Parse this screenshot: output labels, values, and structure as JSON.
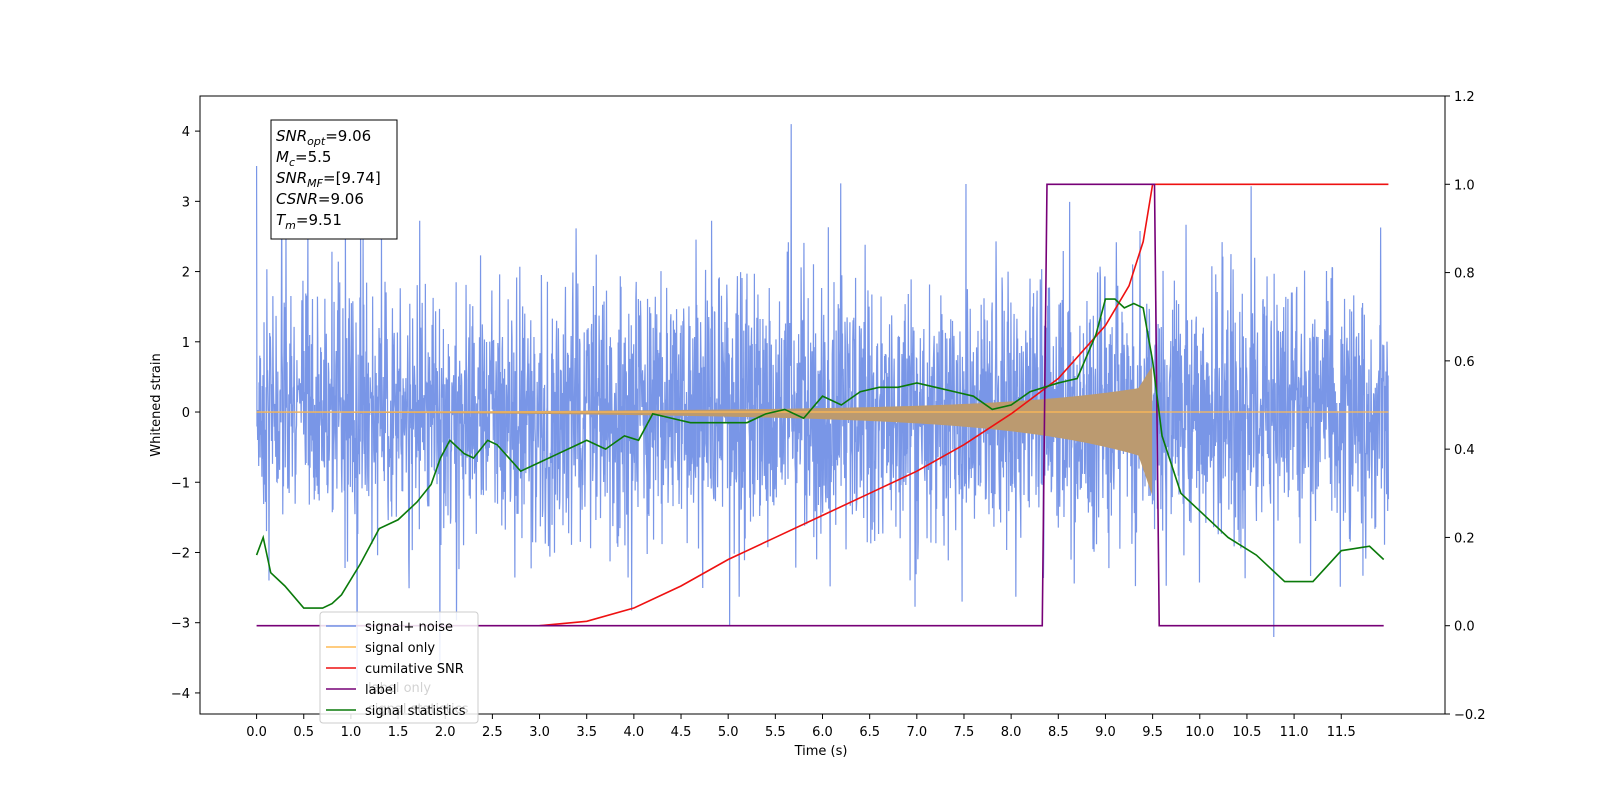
{
  "chart_data": {
    "type": "line",
    "xlabel": "Time (s)",
    "ylabel": "Whitened strain",
    "xlim": [
      -0.6,
      12.6
    ],
    "ylim": [
      -4.3,
      4.5
    ],
    "y2lim": [
      -0.2,
      1.2
    ],
    "x_ticks": [
      "0.0",
      "0.5",
      "1.0",
      "1.5",
      "2.0",
      "2.5",
      "3.0",
      "3.5",
      "4.0",
      "4.5",
      "5.0",
      "5.5",
      "6.0",
      "6.5",
      "7.0",
      "7.5",
      "8.0",
      "8.5",
      "9.0",
      "9.5",
      "10.0",
      "10.5",
      "11.0",
      "11.5"
    ],
    "y_ticks": [
      -4,
      -3,
      -2,
      -1,
      0,
      1,
      2,
      3,
      4
    ],
    "y2_ticks": [
      "−0.2",
      "0.0",
      "0.2",
      "0.4",
      "0.6",
      "0.8",
      "1.0",
      "1.2"
    ],
    "annotation": [
      {
        "base": "SNR",
        "sub": "opt",
        "value": "=9.06"
      },
      {
        "base": "M",
        "sub": "c",
        "value": "=5.5"
      },
      {
        "base": "SNR",
        "sub": "MF",
        "value": "=[9.74]"
      },
      {
        "base": "CSNR",
        "sub": "",
        "value": "=9.06"
      },
      {
        "base": "T",
        "sub": "m",
        "value": "=9.51"
      }
    ],
    "legend": {
      "placement": "lower-left",
      "entries": [
        "signal+ noise",
        "signal only",
        "cumilative SNR",
        "label",
        "signal statistics"
      ],
      "ghost_entries": [
        "label only",
        "signal statistics"
      ]
    },
    "series": [
      {
        "name": "signal+ noise",
        "axis": "left",
        "color": "#7290e6",
        "x_range": [
          0,
          12
        ],
        "amplitude_sd": 0.9
      },
      {
        "name": "signal only",
        "axis": "left",
        "color": "#ffbb55",
        "fill_color": "#bb9a70",
        "x_range": [
          0,
          9.5
        ],
        "peak_amplitude": 1.0
      },
      {
        "name": "cumilative SNR",
        "axis": "right",
        "color": "#ee1111",
        "x": [
          3.0,
          3.5,
          4.0,
          4.5,
          5.0,
          5.5,
          6.0,
          6.5,
          7.0,
          7.5,
          8.0,
          8.5,
          9.0,
          9.25,
          9.4,
          9.5,
          12.0
        ],
        "values": [
          0.0,
          0.01,
          0.04,
          0.09,
          0.15,
          0.2,
          0.25,
          0.3,
          0.35,
          0.41,
          0.48,
          0.56,
          0.68,
          0.77,
          0.87,
          1.0,
          1.0
        ]
      },
      {
        "name": "label",
        "axis": "right",
        "color": "#770077",
        "x": [
          0,
          8.33,
          8.38,
          9.52,
          9.57,
          11.95
        ],
        "values": [
          0,
          0,
          1,
          1,
          0,
          0
        ]
      },
      {
        "name": "signal statistics",
        "axis": "right",
        "color": "#0a7a0a",
        "x": [
          0.0,
          0.07,
          0.15,
          0.3,
          0.5,
          0.7,
          0.8,
          0.9,
          1.1,
          1.3,
          1.5,
          1.7,
          1.85,
          1.95,
          2.05,
          2.2,
          2.3,
          2.45,
          2.55,
          2.8,
          3.0,
          3.2,
          3.4,
          3.5,
          3.7,
          3.9,
          4.05,
          4.2,
          4.4,
          4.6,
          4.8,
          5.0,
          5.2,
          5.4,
          5.6,
          5.8,
          6.0,
          6.2,
          6.4,
          6.6,
          6.8,
          7.0,
          7.2,
          7.4,
          7.6,
          7.8,
          8.0,
          8.2,
          8.5,
          8.7,
          8.9,
          9.0,
          9.1,
          9.2,
          9.3,
          9.4,
          9.5,
          9.6,
          9.8,
          10.0,
          10.3,
          10.6,
          10.9,
          11.2,
          11.5,
          11.8,
          11.95
        ],
        "values": [
          0.16,
          0.2,
          0.12,
          0.09,
          0.04,
          0.04,
          0.05,
          0.07,
          0.14,
          0.22,
          0.24,
          0.28,
          0.32,
          0.38,
          0.42,
          0.39,
          0.38,
          0.42,
          0.41,
          0.35,
          0.37,
          0.39,
          0.41,
          0.42,
          0.4,
          0.43,
          0.42,
          0.48,
          0.47,
          0.46,
          0.46,
          0.46,
          0.46,
          0.48,
          0.49,
          0.47,
          0.52,
          0.5,
          0.53,
          0.54,
          0.54,
          0.55,
          0.54,
          0.53,
          0.52,
          0.49,
          0.5,
          0.53,
          0.55,
          0.56,
          0.66,
          0.74,
          0.74,
          0.72,
          0.73,
          0.72,
          0.6,
          0.43,
          0.3,
          0.26,
          0.2,
          0.16,
          0.1,
          0.1,
          0.17,
          0.18,
          0.15
        ]
      }
    ]
  }
}
